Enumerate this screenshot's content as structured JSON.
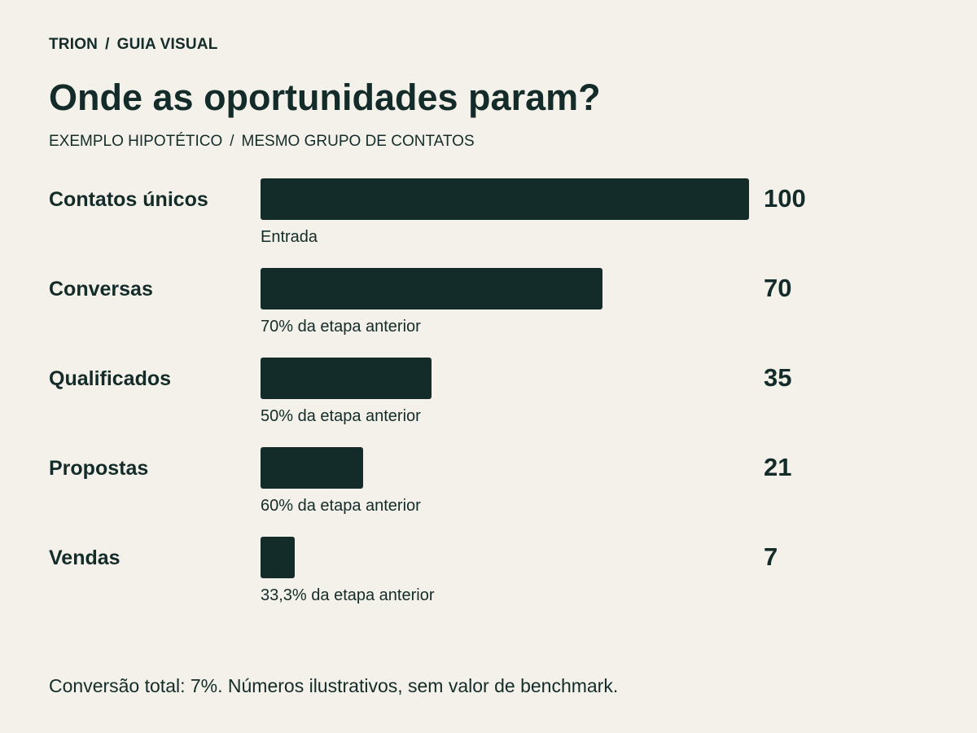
{
  "breadcrumb": {
    "brand": "TRION",
    "separator": "/",
    "section": "GUIA VISUAL"
  },
  "title": "Onde as oportunidades param?",
  "subtitle": {
    "left": "EXEMPLO HIPOTÉTICO",
    "separator": "/",
    "right": "MESMO GRUPO DE CONTATOS"
  },
  "footer": "Conversão total: 7%. Números ilustrativos, sem valor de benchmark.",
  "colors": {
    "background": "#f4f1ea",
    "bar": "#142c29",
    "text": "#142c29"
  },
  "chart_data": {
    "type": "bar",
    "orientation": "horizontal",
    "title": "Onde as oportunidades param?",
    "subtitle": "EXEMPLO HIPOTÉTICO / MESMO GRUPO DE CONTATOS",
    "categories": [
      "Contatos únicos",
      "Conversas",
      "Qualificados",
      "Propostas",
      "Vendas"
    ],
    "values": [
      100,
      70,
      35,
      21,
      7
    ],
    "notes": [
      "Entrada",
      "70% da etapa anterior",
      "50% da etapa anterior",
      "60% da etapa anterior",
      "33,3% da etapa anterior"
    ],
    "xlim": [
      0,
      100
    ],
    "grid": false,
    "legend": "none"
  }
}
